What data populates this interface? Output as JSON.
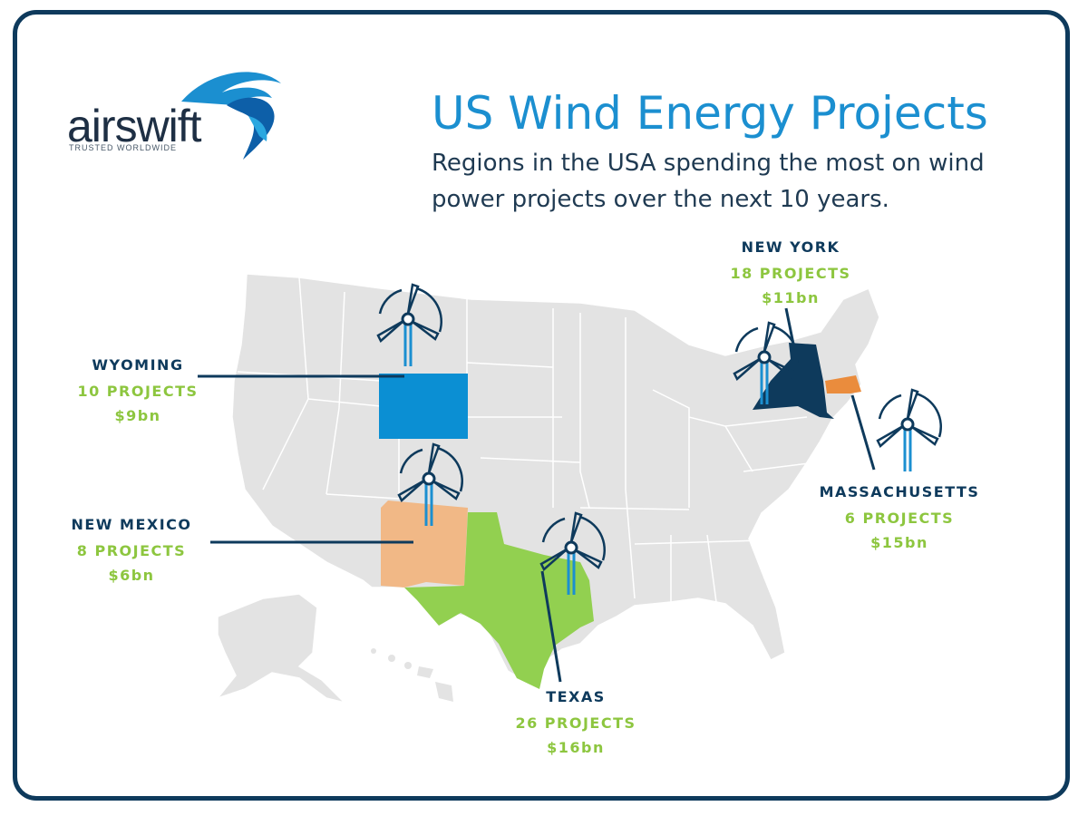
{
  "brand": {
    "name": "airswift",
    "tagline": "TRUSTED WORLDWIDE"
  },
  "title": "US Wind Energy Projects",
  "subtitle": "Regions in the USA spending the most on wind power projects over the next 10 years.",
  "colors": {
    "frame": "#0e3a5c",
    "wyoming": "#0b8fd3",
    "new_mexico": "#f1b886",
    "texas": "#92d050",
    "new_york": "#0e3a5c",
    "massachusetts": "#ea8c3d",
    "other_states": "#e3e3e3"
  },
  "regions": [
    {
      "name": "WYOMING",
      "projects": "10 PROJECTS",
      "amount": "$9bn"
    },
    {
      "name": "NEW MEXICO",
      "projects": "8 PROJECTS",
      "amount": "$6bn"
    },
    {
      "name": "TEXAS",
      "projects": "26 PROJECTS",
      "amount": "$16bn"
    },
    {
      "name": "NEW YORK",
      "projects": "18 PROJECTS",
      "amount": "$11bn"
    },
    {
      "name": "MASSACHUSETTS",
      "projects": "6 PROJECTS",
      "amount": "$15bn"
    }
  ],
  "icons": [
    "wind-turbine-icon"
  ]
}
